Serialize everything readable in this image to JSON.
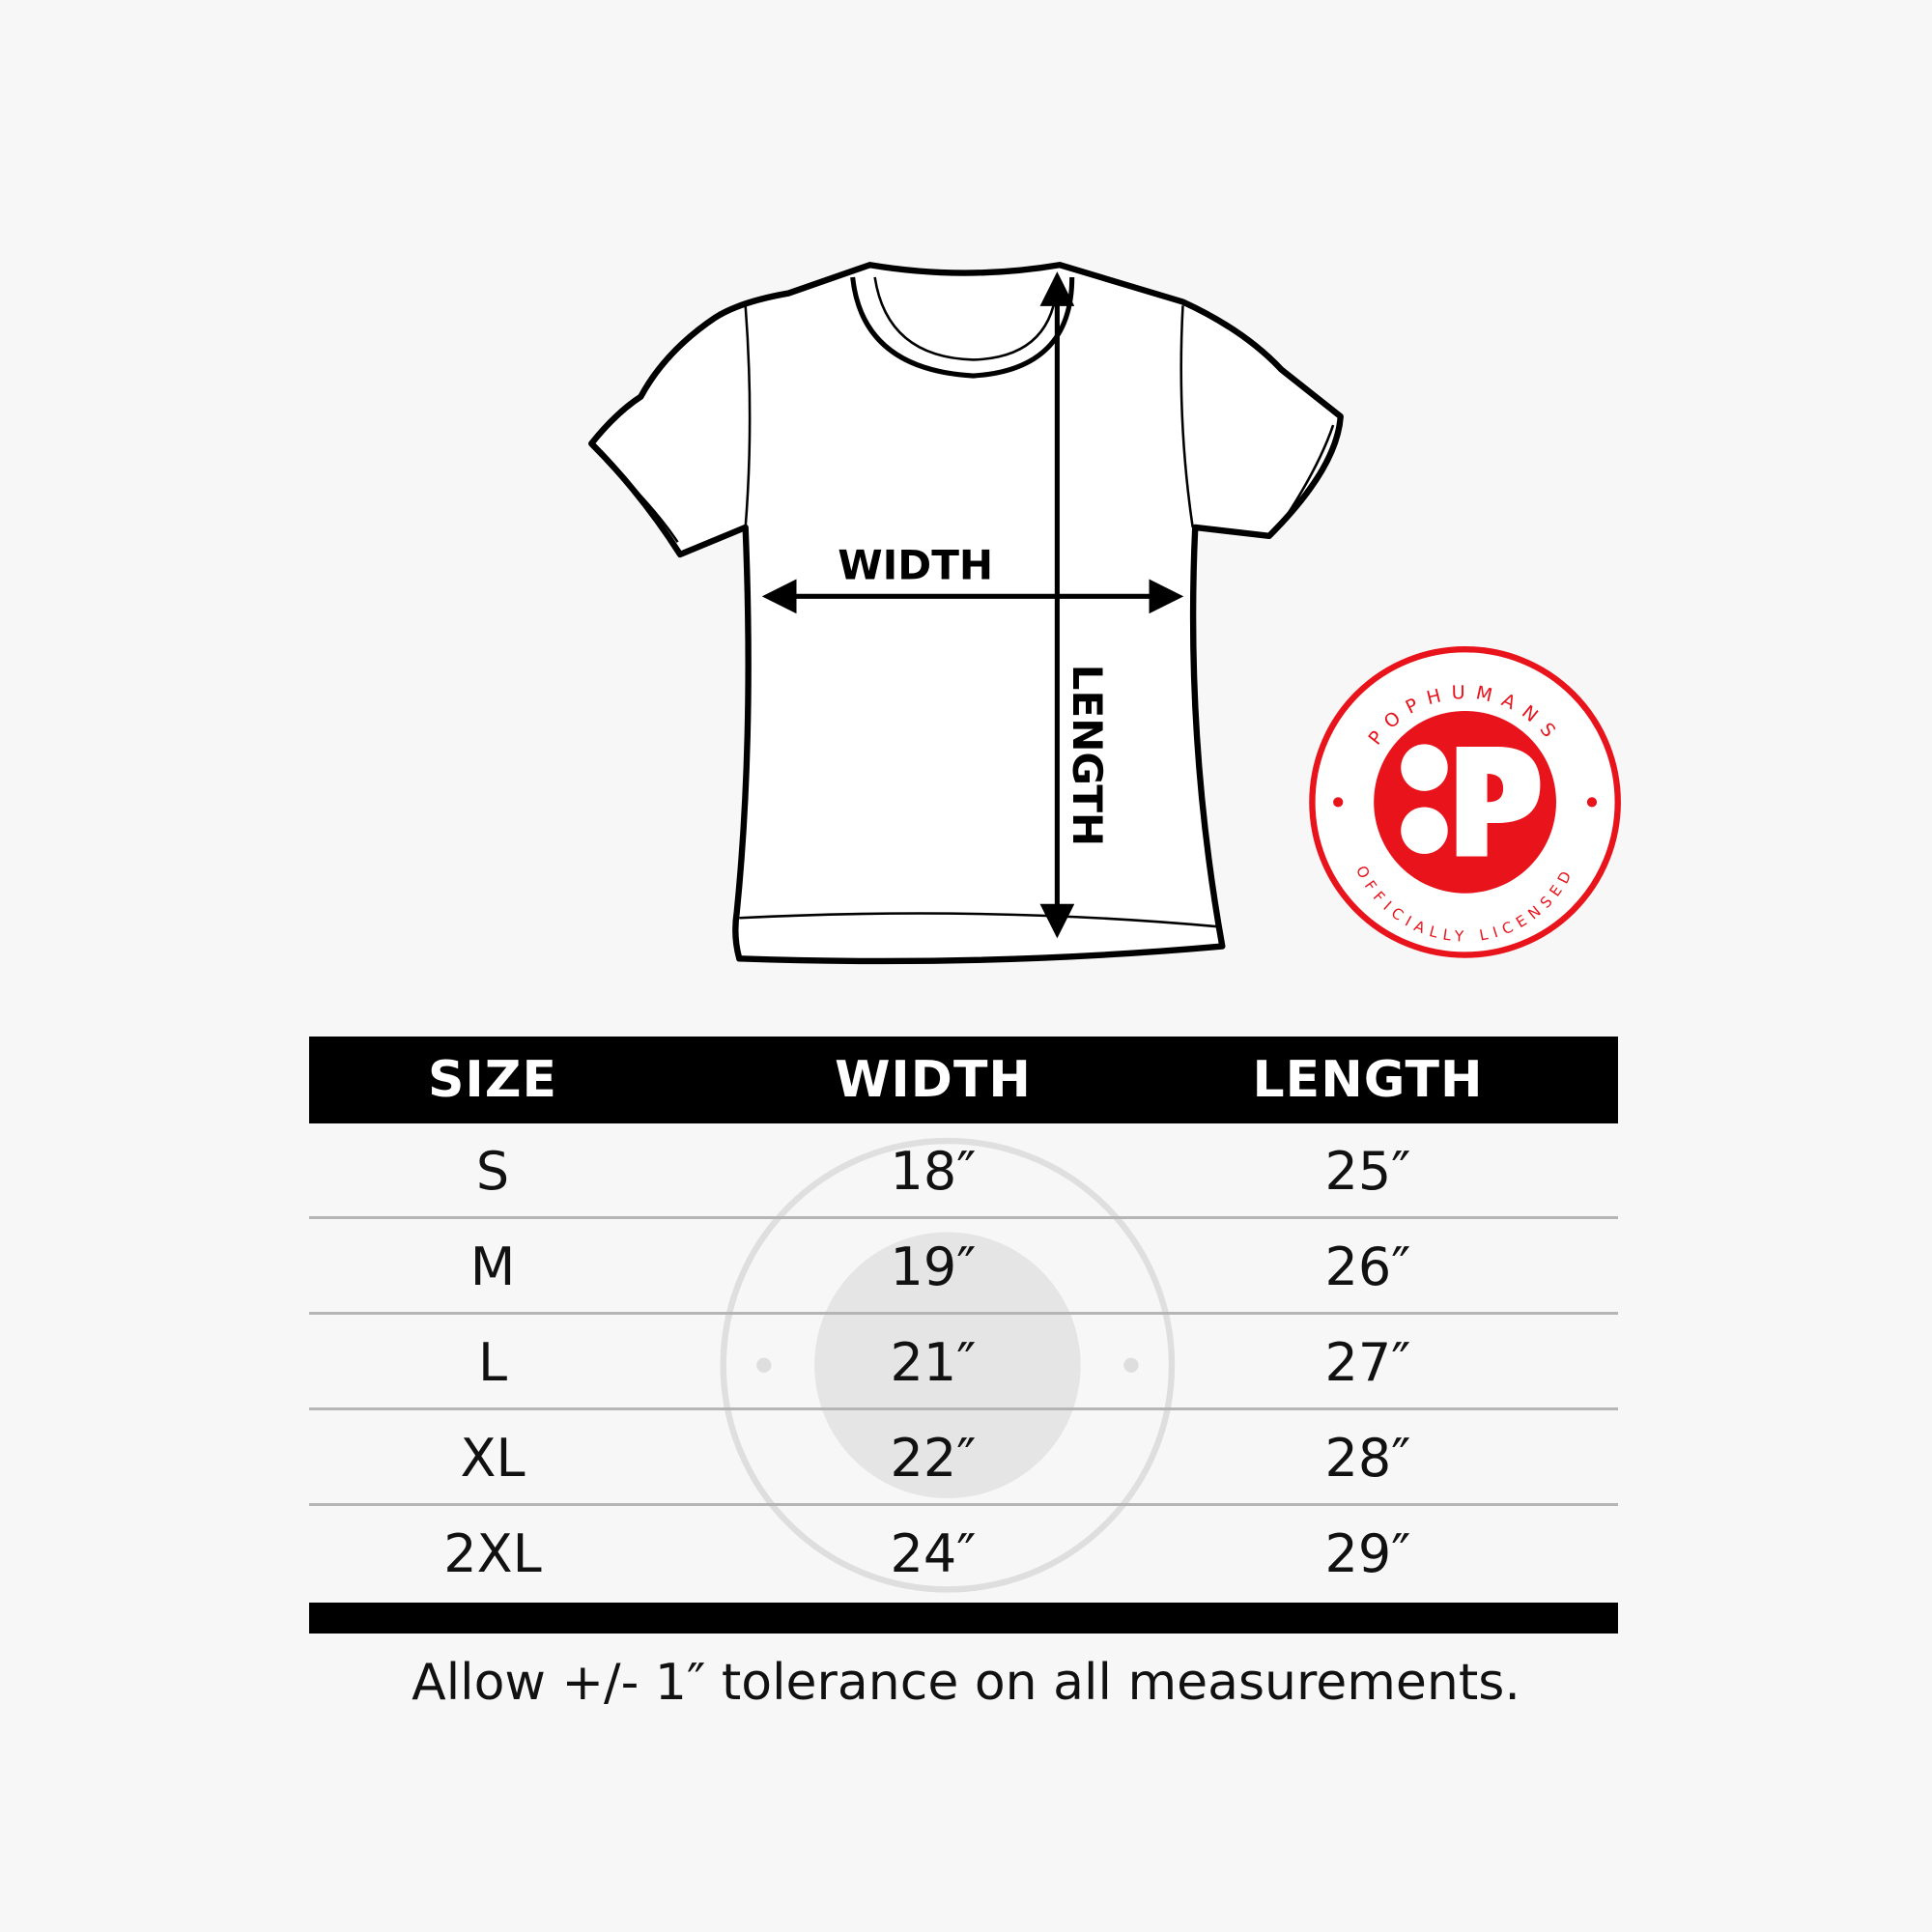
{
  "diagram": {
    "width_label": "WIDTH",
    "length_label": "LENGTH"
  },
  "badge": {
    "top_text": "POPHUMANS",
    "bottom_text": "OFFICIALLY LICENSED",
    "color": "#e8131b"
  },
  "table": {
    "headers": [
      "SIZE",
      "WIDTH",
      "LENGTH"
    ],
    "rows": [
      [
        "S",
        "18″",
        "25″"
      ],
      [
        "M",
        "19″",
        "26″"
      ],
      [
        "L",
        "21″",
        "27″"
      ],
      [
        "XL",
        "22″",
        "28″"
      ],
      [
        "2XL",
        "24″",
        "29″"
      ]
    ]
  },
  "footer": "Allow +/- 1″ tolerance on all measurements."
}
